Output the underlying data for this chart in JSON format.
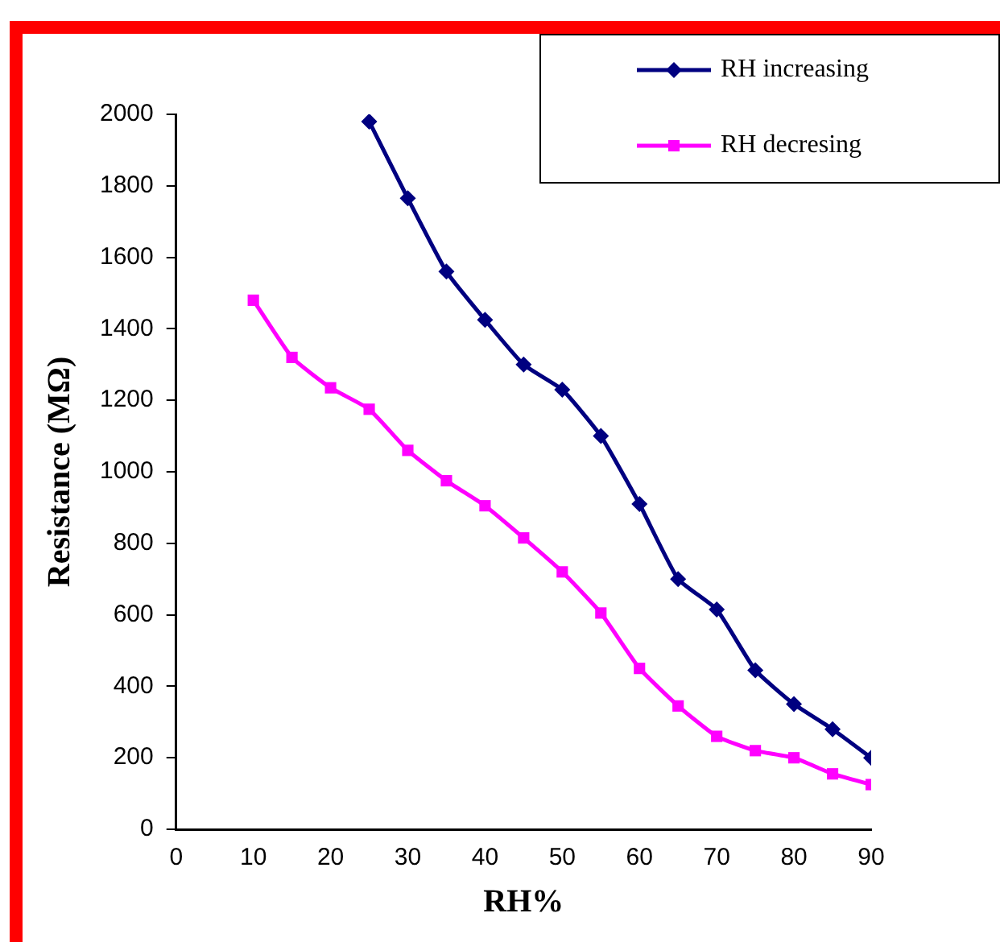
{
  "chart_data": {
    "type": "line",
    "xlabel": "RH%",
    "ylabel": "Resistance (MΩ)",
    "xlim": [
      0,
      90
    ],
    "xticks": [
      0,
      10,
      20,
      30,
      40,
      50,
      60,
      70,
      80,
      90
    ],
    "ylim": [
      0,
      2000
    ],
    "yticks": [
      0,
      200,
      400,
      600,
      800,
      1000,
      1200,
      1400,
      1600,
      1800,
      2000
    ],
    "grid": false,
    "legend": "top right",
    "line_style": "solid",
    "series": [
      {
        "name": "RH increasing",
        "color": "#000080",
        "marker": "diamond",
        "x": [
          25,
          30,
          35,
          40,
          45,
          50,
          55,
          60,
          65,
          70,
          75,
          80,
          85,
          90
        ],
        "values": [
          1980,
          1765,
          1560,
          1425,
          1300,
          1230,
          1100,
          910,
          700,
          615,
          445,
          350,
          280,
          200
        ]
      },
      {
        "name": "RH decresing",
        "color": "#ff00ff",
        "marker": "square",
        "x": [
          10,
          15,
          20,
          25,
          30,
          35,
          40,
          45,
          50,
          55,
          60,
          65,
          70,
          75,
          80,
          85,
          90
        ],
        "values": [
          1480,
          1320,
          1235,
          1175,
          1060,
          975,
          905,
          815,
          720,
          605,
          450,
          345,
          260,
          220,
          200,
          155,
          125
        ]
      }
    ]
  }
}
